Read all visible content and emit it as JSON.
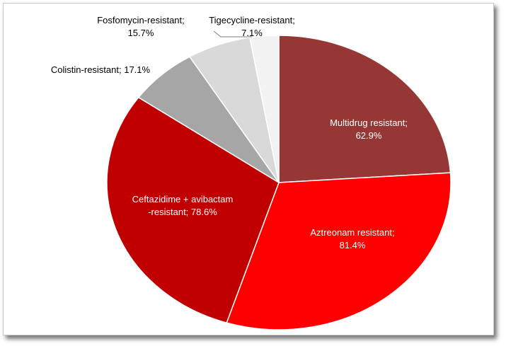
{
  "chart_data": {
    "type": "pie",
    "title": "",
    "slices": [
      {
        "label_lines": [
          "Multidrug resistant;",
          "62.9%"
        ],
        "category": "Multidrug resistant",
        "value": 62.9,
        "color": "#953735",
        "text_color": "#ffffff"
      },
      {
        "label_lines": [
          "Aztreonam resistant;",
          "81.4%"
        ],
        "category": "Aztreonam resistant",
        "value": 81.4,
        "color": "#ff0000",
        "text_color": "#ffffff"
      },
      {
        "label_lines": [
          "Ceftazidime + avibactam",
          "-resistant; 78.6%"
        ],
        "category": "Ceftazidime + avibactam -resistant",
        "value": 78.6,
        "color": "#c00000",
        "text_color": "#ffffff"
      },
      {
        "label_lines": [
          "Colistin-resistant; 17.1%"
        ],
        "category": "Colistin-resistant",
        "value": 17.1,
        "color": "#a6a6a6",
        "text_color": "#000000"
      },
      {
        "label_lines": [
          "Fosfomycin-resistant;",
          "15.7%"
        ],
        "category": "Fosfomycin-resistant",
        "value": 15.7,
        "color": "#d9d9d9",
        "text_color": "#000000"
      },
      {
        "label_lines": [
          "Tigecycline-resistant;",
          "7.1%"
        ],
        "category": "Tigecycline-resistant",
        "value": 7.1,
        "color": "#f2f2f2",
        "text_color": "#000000"
      }
    ],
    "start_angle_deg": 0,
    "direction": "clockwise",
    "legend": "none"
  }
}
